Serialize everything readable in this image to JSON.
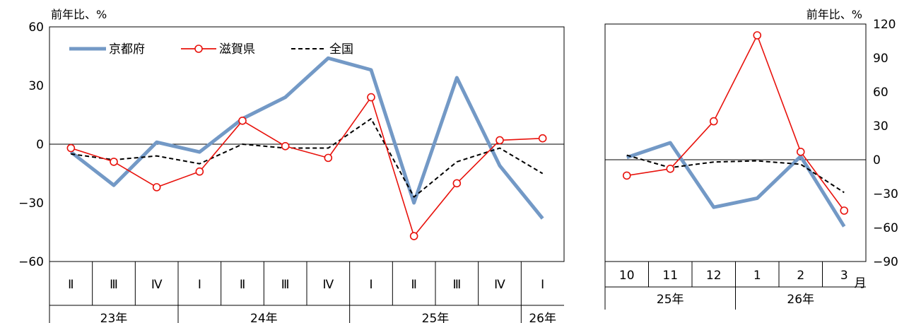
{
  "chart_data": [
    {
      "type": "line",
      "unit_label": "前年比、%",
      "quarter_labels": [
        "Ⅱ",
        "Ⅲ",
        "Ⅳ",
        "Ⅰ",
        "Ⅱ",
        "Ⅲ",
        "Ⅳ",
        "Ⅰ",
        "Ⅱ",
        "Ⅲ",
        "Ⅳ",
        "Ⅰ"
      ],
      "year_groups": [
        {
          "label": "23年",
          "count": 3
        },
        {
          "label": "24年",
          "count": 4
        },
        {
          "label": "25年",
          "count": 4
        },
        {
          "label": "26年",
          "count": 1
        }
      ],
      "ylim": [
        -60,
        60
      ],
      "yticks": [
        60,
        30,
        0,
        -30,
        -60
      ],
      "ytick_labels": [
        "60",
        "30",
        "0",
        "−30",
        "−60"
      ],
      "legend_position": "top-left",
      "series": [
        {
          "name": "京都府",
          "color": "#7399c6",
          "style": "thick",
          "values": [
            -4,
            -21,
            1,
            -4,
            13,
            24,
            44,
            38,
            -30,
            34,
            -11,
            -38
          ]
        },
        {
          "name": "滋賀県",
          "color": "#e8120c",
          "style": "marker",
          "values": [
            -2,
            -9,
            -22,
            -14,
            12,
            -1,
            -7,
            24,
            -47,
            -20,
            2,
            3
          ]
        },
        {
          "name": "全国",
          "color": "#000000",
          "style": "dashed",
          "values": [
            -5,
            -8,
            -6,
            -10,
            0,
            -2,
            -2,
            13,
            -27,
            -9,
            -2,
            -15
          ]
        }
      ]
    },
    {
      "type": "line",
      "unit_label": "前年比、%",
      "month_labels": [
        "10",
        "11",
        "12",
        "1",
        "2",
        "3"
      ],
      "month_suffix": "月",
      "year_groups": [
        {
          "label": "25年",
          "count": 3
        },
        {
          "label": "26年",
          "count": 3
        }
      ],
      "ylim": [
        -90,
        120
      ],
      "yticks": [
        120,
        90,
        60,
        30,
        0,
        -30,
        -60,
        -90
      ],
      "ytick_labels": [
        "120",
        "90",
        "60",
        "30",
        "0",
        "−30",
        "−60",
        "−90"
      ],
      "series": [
        {
          "name": "京都府",
          "color": "#7399c6",
          "style": "thick",
          "values": [
            2,
            15,
            -42,
            -34,
            3,
            -59
          ]
        },
        {
          "name": "滋賀県",
          "color": "#e8120c",
          "style": "marker",
          "values": [
            -14,
            -8,
            34,
            110,
            7,
            -45
          ]
        },
        {
          "name": "全国",
          "color": "#000000",
          "style": "dashed",
          "values": [
            4,
            -7,
            -2,
            -1,
            -4,
            -29
          ]
        }
      ]
    }
  ]
}
